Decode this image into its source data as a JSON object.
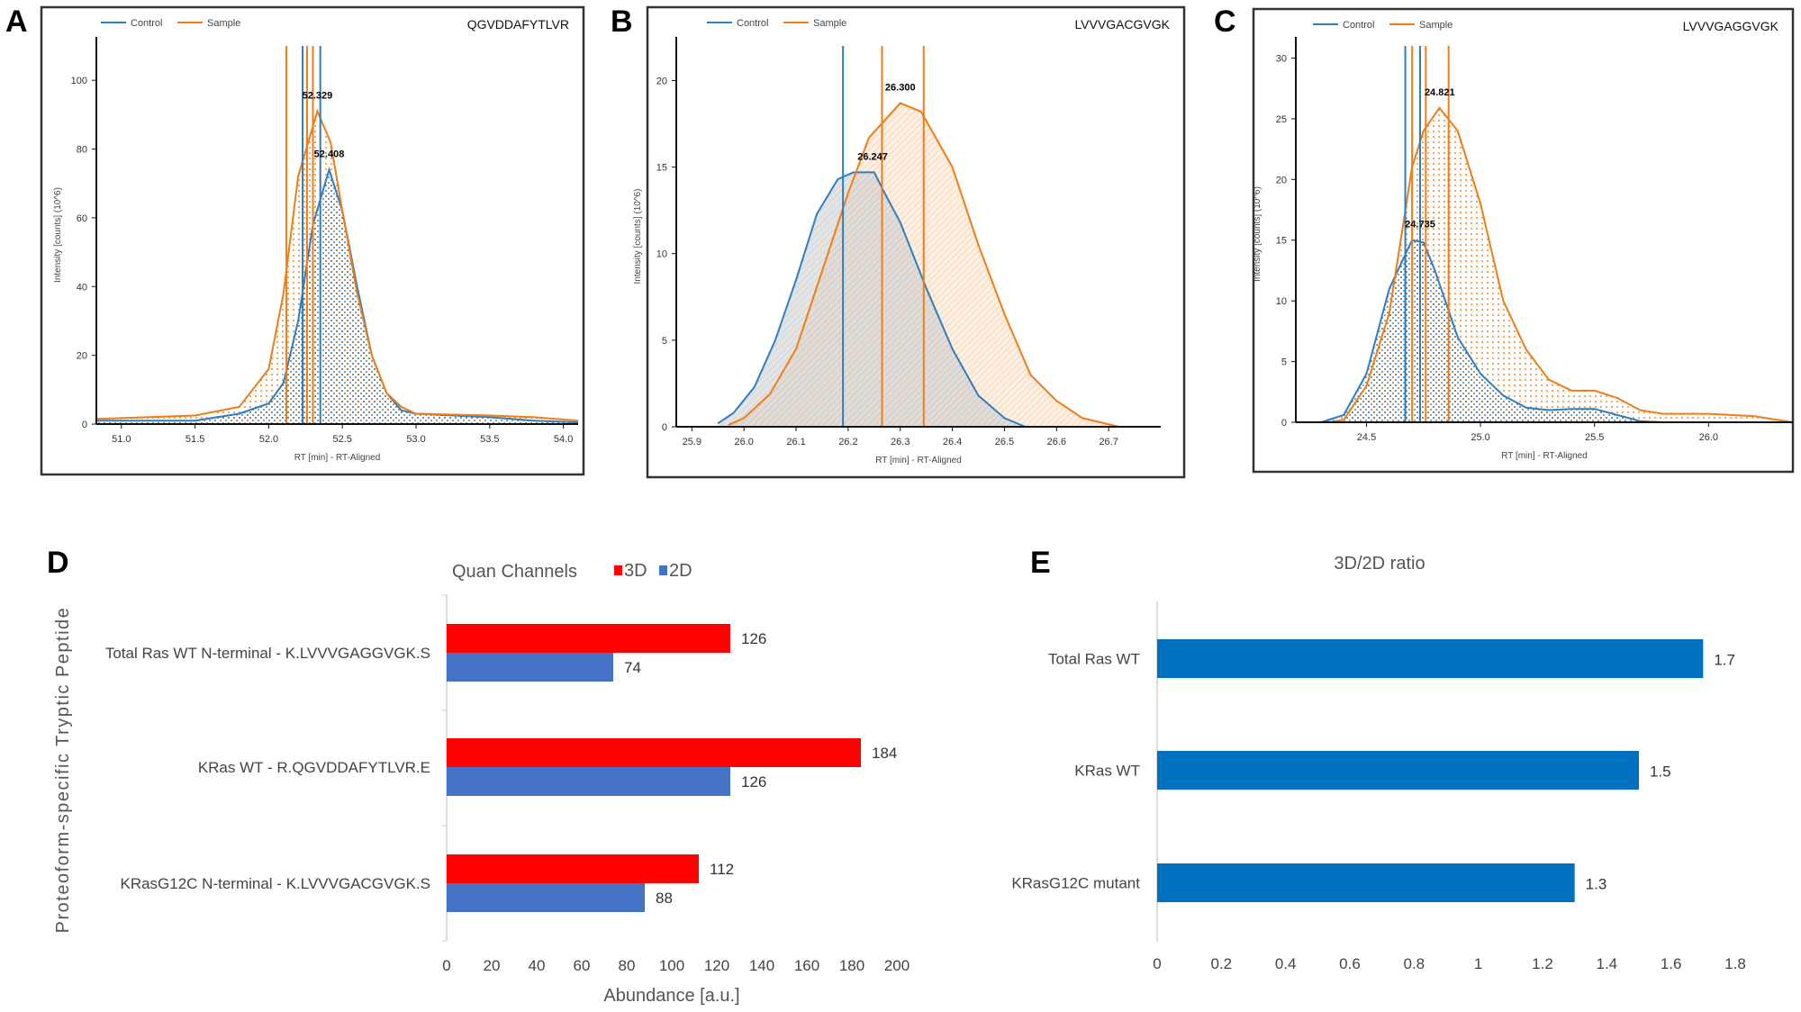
{
  "panel_labels": [
    "A",
    "B",
    "C",
    "D",
    "E"
  ],
  "colors": {
    "control": "#2f7ec0",
    "sample": "#f07d16",
    "bar_3d": "#ff0000",
    "bar_2d": "#4472c4",
    "ratio_bar": "#0070c0"
  },
  "chart_data": [
    {
      "type": "line",
      "panel": "A",
      "peptide": "QGVDDAFYTLVR",
      "legend": [
        "Control",
        "Sample"
      ],
      "legend_placement": "top-left",
      "xlabel": "RT [min] - RT-Aligned",
      "ylabel": "Intensity [counts] (10^6)",
      "xlim": [
        50.83,
        54.1
      ],
      "ylim": [
        0,
        110
      ],
      "xticks": [
        "51.0",
        "51.5",
        "52.0",
        "52.5",
        "53.0",
        "53.5",
        "54.0"
      ],
      "yticks": [
        "0",
        "20",
        "40",
        "60",
        "80",
        "100"
      ],
      "fill_style": "dotted",
      "series": [
        {
          "name": "Control",
          "points": [
            [
              50.83,
              1
            ],
            [
              51.5,
              1
            ],
            [
              51.8,
              3
            ],
            [
              52.0,
              6
            ],
            [
              52.1,
              12
            ],
            [
              52.2,
              30
            ],
            [
              52.3,
              58
            ],
            [
              52.41,
              74
            ],
            [
              52.5,
              62
            ],
            [
              52.6,
              40
            ],
            [
              52.7,
              20
            ],
            [
              52.8,
              9
            ],
            [
              52.9,
              4
            ],
            [
              53.0,
              3
            ],
            [
              53.5,
              2
            ],
            [
              53.8,
              1
            ],
            [
              54.1,
              0.5
            ]
          ]
        },
        {
          "name": "Sample",
          "points": [
            [
              50.83,
              1.5
            ],
            [
              51.5,
              2.5
            ],
            [
              51.8,
              5
            ],
            [
              52.0,
              16
            ],
            [
              52.1,
              38
            ],
            [
              52.2,
              72
            ],
            [
              52.33,
              91
            ],
            [
              52.42,
              82
            ],
            [
              52.5,
              62
            ],
            [
              52.6,
              38
            ],
            [
              52.7,
              20
            ],
            [
              52.8,
              9
            ],
            [
              52.9,
              5
            ],
            [
              53.0,
              3
            ],
            [
              53.5,
              2.5
            ],
            [
              53.8,
              2
            ],
            [
              54.1,
              1
            ]
          ]
        }
      ],
      "markers": [
        {
          "series": "Sample",
          "x": 52.12
        },
        {
          "series": "Control",
          "x": 52.23
        },
        {
          "series": "Sample",
          "x": 52.26
        },
        {
          "series": "Sample",
          "x": 52.3
        },
        {
          "series": "Control",
          "x": 52.35
        }
      ],
      "peak_labels": [
        {
          "text": "52.329",
          "x": 52.33,
          "y": 91
        },
        {
          "text": "52.408",
          "x": 52.41,
          "y": 74
        }
      ]
    },
    {
      "type": "line",
      "panel": "B",
      "peptide": "LVVVGACGVGK",
      "legend": [
        "Control",
        "Sample"
      ],
      "legend_placement": "top-left",
      "xlabel": "RT [min] - RT-Aligned",
      "ylabel": "Intensity [counts] (10^6)",
      "xlim": [
        25.87,
        26.8
      ],
      "ylim": [
        0,
        22
      ],
      "xticks": [
        "25.9",
        "26.0",
        "26.1",
        "26.2",
        "26.3",
        "26.4",
        "26.5",
        "26.6",
        "26.7"
      ],
      "yticks": [
        "0",
        "5",
        "10",
        "15",
        "20"
      ],
      "fill_style": "hatched",
      "series": [
        {
          "name": "Control",
          "points": [
            [
              25.95,
              0.2
            ],
            [
              25.98,
              0.8
            ],
            [
              26.02,
              2.3
            ],
            [
              26.06,
              5
            ],
            [
              26.1,
              8.5
            ],
            [
              26.14,
              12.3
            ],
            [
              26.18,
              14.3
            ],
            [
              26.21,
              14.7
            ],
            [
              26.25,
              14.7
            ],
            [
              26.27,
              13.5
            ],
            [
              26.3,
              11.8
            ],
            [
              26.35,
              8
            ],
            [
              26.4,
              4.5
            ],
            [
              26.45,
              1.8
            ],
            [
              26.5,
              0.5
            ],
            [
              26.54,
              0
            ]
          ]
        },
        {
          "name": "Sample",
          "points": [
            [
              25.97,
              0.1
            ],
            [
              26.0,
              0.5
            ],
            [
              26.05,
              1.9
            ],
            [
              26.1,
              4.5
            ],
            [
              26.15,
              9
            ],
            [
              26.2,
              13.5
            ],
            [
              26.24,
              16.7
            ],
            [
              26.27,
              17.7
            ],
            [
              26.3,
              18.7
            ],
            [
              26.34,
              18.2
            ],
            [
              26.4,
              15
            ],
            [
              26.45,
              10.5
            ],
            [
              26.5,
              6.5
            ],
            [
              26.55,
              3
            ],
            [
              26.6,
              1.5
            ],
            [
              26.65,
              0.5
            ],
            [
              26.72,
              0
            ]
          ]
        }
      ],
      "markers": [
        {
          "series": "Control",
          "x": 26.19
        },
        {
          "series": "Sample",
          "x": 26.265
        },
        {
          "series": "Sample",
          "x": 26.345
        }
      ],
      "peak_labels": [
        {
          "text": "26.300",
          "x": 26.3,
          "y": 18.7
        },
        {
          "text": "26.247",
          "x": 26.247,
          "y": 14.7
        }
      ]
    },
    {
      "type": "line",
      "panel": "C",
      "peptide": "LVVVGAGGVGK",
      "legend": [
        "Control",
        "Sample"
      ],
      "legend_placement": "top-left",
      "xlabel": "RT [min] - RT-Aligned",
      "ylabel": "Intensity [counts] (10^6)",
      "xlim": [
        24.19,
        26.37
      ],
      "ylim": [
        0,
        31
      ],
      "xticks": [
        "24.5",
        "25.0",
        "25.5",
        "26.0"
      ],
      "yticks": [
        "0",
        "5",
        "10",
        "15",
        "20",
        "25",
        "30"
      ],
      "fill_style": "dotted",
      "series": [
        {
          "name": "Control",
          "points": [
            [
              24.3,
              0
            ],
            [
              24.4,
              0.6
            ],
            [
              24.5,
              4
            ],
            [
              24.6,
              11
            ],
            [
              24.7,
              15
            ],
            [
              24.75,
              14.8
            ],
            [
              24.8,
              12.5
            ],
            [
              24.9,
              7
            ],
            [
              25.0,
              4
            ],
            [
              25.1,
              2.2
            ],
            [
              25.2,
              1.2
            ],
            [
              25.3,
              1
            ],
            [
              25.4,
              1.1
            ],
            [
              25.5,
              1.1
            ],
            [
              25.6,
              0.6
            ],
            [
              25.7,
              0.1
            ],
            [
              25.8,
              0
            ]
          ]
        },
        {
          "name": "Sample",
          "points": [
            [
              24.33,
              0
            ],
            [
              24.4,
              0.2
            ],
            [
              24.5,
              3
            ],
            [
              24.6,
              9
            ],
            [
              24.65,
              15
            ],
            [
              24.7,
              21
            ],
            [
              24.75,
              24
            ],
            [
              24.82,
              25.9
            ],
            [
              24.9,
              24
            ],
            [
              25.0,
              18
            ],
            [
              25.1,
              10
            ],
            [
              25.2,
              6
            ],
            [
              25.3,
              3.5
            ],
            [
              25.4,
              2.6
            ],
            [
              25.5,
              2.6
            ],
            [
              25.6,
              2
            ],
            [
              25.7,
              1
            ],
            [
              25.8,
              0.7
            ],
            [
              26.0,
              0.7
            ],
            [
              26.2,
              0.5
            ],
            [
              26.3,
              0.2
            ],
            [
              26.37,
              0
            ]
          ]
        }
      ],
      "markers": [
        {
          "series": "Control",
          "x": 24.67
        },
        {
          "series": "Sample",
          "x": 24.7
        },
        {
          "series": "Control",
          "x": 24.735
        },
        {
          "series": "Sample",
          "x": 24.76
        },
        {
          "series": "Sample",
          "x": 24.86
        }
      ],
      "peak_labels": [
        {
          "text": "24.821",
          "x": 24.821,
          "y": 25.9
        },
        {
          "text": "24.735",
          "x": 24.735,
          "y": 15
        }
      ]
    },
    {
      "type": "bar",
      "panel": "D",
      "orientation": "horizontal",
      "title": "Quan Channels",
      "legend_placement": "top",
      "categories": [
        "Total Ras WT  N-terminal -  K.LVVVGAGGVGK.S",
        "KRas WT - R.QGVDDAFYTLVR.E",
        "KRasG12C N-terminal - K.LVVVGACGVGK.S"
      ],
      "series": [
        {
          "name": "3D",
          "values": [
            126,
            184,
            112
          ]
        },
        {
          "name": "2D",
          "values": [
            74,
            126,
            88
          ]
        }
      ],
      "xlabel": "Abundance [a.u.]",
      "ylabel": "Proteoform-specific Tryptic Peptide",
      "xlim": [
        0,
        200
      ],
      "xticks": [
        "0",
        "20",
        "40",
        "60",
        "80",
        "100",
        "120",
        "140",
        "160",
        "180",
        "200"
      ],
      "grid": false
    },
    {
      "type": "bar",
      "panel": "E",
      "orientation": "horizontal",
      "title": "3D/2D ratio",
      "categories": [
        "Total Ras WT",
        "KRas WT",
        "KRasG12C mutant"
      ],
      "values": [
        1.7,
        1.5,
        1.3
      ],
      "xlim": [
        0,
        1.8
      ],
      "xticks": [
        "0",
        "0.2",
        "0.4",
        "0.6",
        "0.8",
        "1",
        "1.2",
        "1.4",
        "1.6",
        "1.8"
      ],
      "grid": false
    }
  ]
}
